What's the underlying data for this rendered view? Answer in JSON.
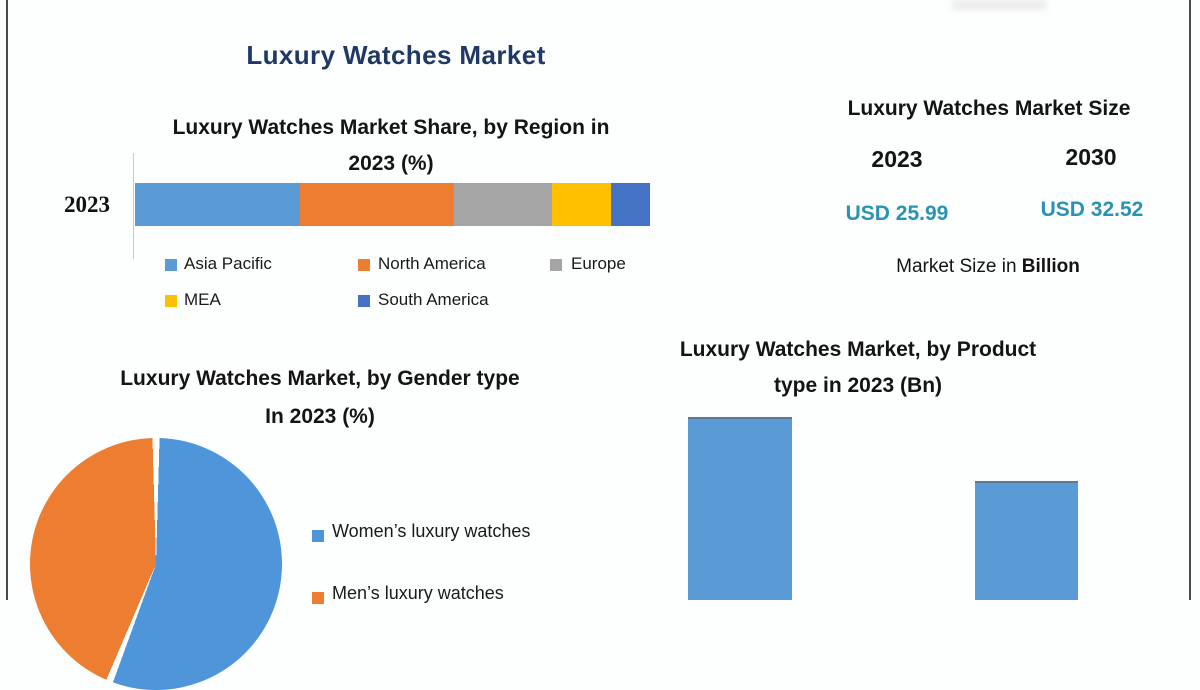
{
  "page": {
    "main_title": "Luxury Watches Market",
    "title_color": "#1F3864",
    "frame_color": "#4A4A4A",
    "background": "#FDFEFE"
  },
  "region_chart": {
    "title_lines": [
      "Luxury Watches Market Share, by Region in",
      "2023 (%)"
    ]
  },
  "market_size_panel": {
    "title": "Luxury Watches Market Size",
    "years": [
      "2023",
      "2030"
    ],
    "values": [
      "USD 25.99",
      "USD 32.52"
    ],
    "value_color": "#2A93B5",
    "note_prefix": "Market Size in ",
    "note_bold": "Billion"
  },
  "gender_chart": {
    "title_lines": [
      "Luxury Watches Market, by Gender type",
      "In 2023 (%)"
    ]
  },
  "product_chart": {
    "title_lines": [
      "Luxury Watches Market, by Product",
      "type in 2023 (Bn)"
    ]
  },
  "chart_data": [
    {
      "id": "region-share",
      "type": "bar",
      "variant": "horizontal-stacked",
      "title": "Luxury Watches Market Share, by Region in 2023 (%)",
      "categories": [
        "2023"
      ],
      "unit": "%",
      "values_estimated": true,
      "series": [
        {
          "name": "Asia Pacific",
          "values": [
            32
          ],
          "color": "#5B9BD5"
        },
        {
          "name": "North America",
          "values": [
            30
          ],
          "color": "#ED7D31"
        },
        {
          "name": "Europe",
          "values": [
            19
          ],
          "color": "#A5A5A5"
        },
        {
          "name": "MEA",
          "values": [
            11.5
          ],
          "color": "#FFC000"
        },
        {
          "name": "South America",
          "values": [
            7.5
          ],
          "color": "#4472C4"
        }
      ],
      "legend_position": "bottom",
      "grid": false
    },
    {
      "id": "market-size",
      "type": "table",
      "title": "Luxury Watches Market Size",
      "columns": [
        "2023",
        "2030"
      ],
      "rows": [
        [
          "USD 25.99",
          "USD 32.52"
        ]
      ],
      "note": "Market Size in Billion"
    },
    {
      "id": "gender-share",
      "type": "pie",
      "title": "Luxury Watches Market, by Gender type In 2023 (%)",
      "labels": [
        "Women’s luxury watches",
        "Men’s luxury watches"
      ],
      "values": [
        56,
        44
      ],
      "values_estimated": true,
      "colors": [
        "#4E95D9",
        "#ED7D31"
      ],
      "legend_position": "right",
      "cropped_bottom": true
    },
    {
      "id": "product-type",
      "type": "bar",
      "title": "Luxury Watches Market, by Product type in 2023 (Bn)",
      "categories": [
        "",
        ""
      ],
      "values": [
        null,
        null
      ],
      "relative_heights_pct": [
        100,
        65
      ],
      "values_estimated": true,
      "color": "#5B9BD5",
      "cropped_bottom": true
    }
  ]
}
